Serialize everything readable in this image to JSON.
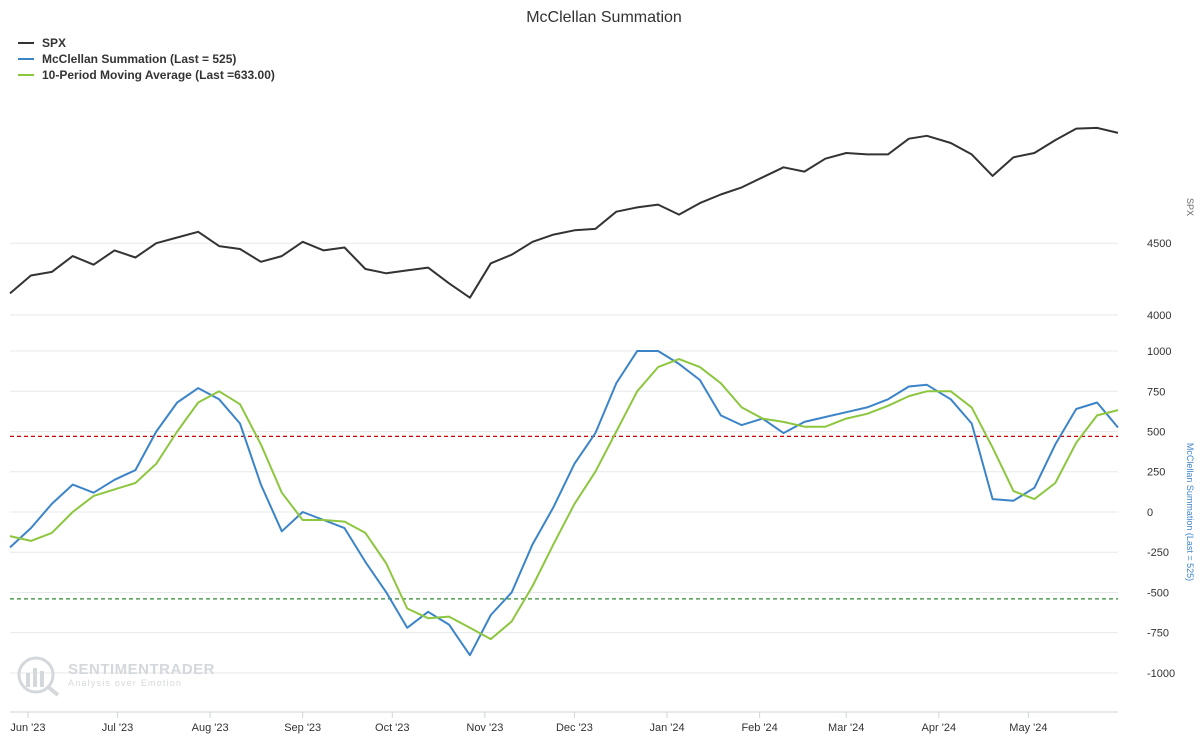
{
  "chart_data": {
    "type": "line",
    "title": "McClellan Summation",
    "x_range": [
      "2023-05-26",
      "2024-05-31"
    ],
    "x_ticks": [
      {
        "date": "2023-06-01",
        "label": "Jun '23"
      },
      {
        "date": "2023-07-01",
        "label": "Jul '23"
      },
      {
        "date": "2023-08-01",
        "label": "Aug '23"
      },
      {
        "date": "2023-09-01",
        "label": "Sep '23"
      },
      {
        "date": "2023-10-01",
        "label": "Oct '23"
      },
      {
        "date": "2023-11-01",
        "label": "Nov '23"
      },
      {
        "date": "2023-12-01",
        "label": "Dec '23"
      },
      {
        "date": "2024-01-01",
        "label": "Jan '24"
      },
      {
        "date": "2024-02-01",
        "label": "Feb '24"
      },
      {
        "date": "2024-03-01",
        "label": "Mar '24"
      },
      {
        "date": "2024-04-01",
        "label": "Apr '24"
      },
      {
        "date": "2024-05-01",
        "label": "May '24"
      }
    ],
    "upper_axis": {
      "title": "SPX",
      "range": [
        3950,
        5500
      ],
      "ticks": [
        4000,
        4500
      ],
      "tick_labels": [
        "4000",
        "4500"
      ]
    },
    "lower_axis": {
      "title": "McClellan Summation (Last = 525)",
      "range": [
        -1100,
        1050
      ],
      "ticks": [
        1000,
        750,
        500,
        250,
        0,
        -250,
        -500,
        -750,
        -1000
      ],
      "tick_labels": [
        "1000",
        "750",
        "500",
        "250",
        "0",
        "-250",
        "-500",
        "-750",
        "-1000"
      ]
    },
    "reference_lines": [
      {
        "value": 470,
        "color": "#cc0000"
      },
      {
        "value": -540,
        "color": "#2e8b2e"
      }
    ],
    "legend": [
      {
        "label": "SPX",
        "color": "#333333"
      },
      {
        "label": "McClellan Summation (Last = 525)",
        "color": "#3c84c8"
      },
      {
        "label": "10-Period Moving Average (Last =633.00)",
        "color": "#8dc63f"
      }
    ],
    "series": [
      {
        "name": "SPX",
        "axis": "upper",
        "color": "#333333",
        "points": [
          [
            "2023-05-26",
            4150
          ],
          [
            "2023-06-02",
            4275
          ],
          [
            "2023-06-09",
            4300
          ],
          [
            "2023-06-16",
            4410
          ],
          [
            "2023-06-23",
            4350
          ],
          [
            "2023-06-30",
            4450
          ],
          [
            "2023-07-07",
            4400
          ],
          [
            "2023-07-14",
            4500
          ],
          [
            "2023-07-21",
            4540
          ],
          [
            "2023-07-28",
            4580
          ],
          [
            "2023-08-04",
            4480
          ],
          [
            "2023-08-11",
            4460
          ],
          [
            "2023-08-18",
            4370
          ],
          [
            "2023-08-25",
            4410
          ],
          [
            "2023-09-01",
            4510
          ],
          [
            "2023-09-08",
            4450
          ],
          [
            "2023-09-15",
            4470
          ],
          [
            "2023-09-22",
            4320
          ],
          [
            "2023-09-29",
            4290
          ],
          [
            "2023-10-06",
            4310
          ],
          [
            "2023-10-13",
            4330
          ],
          [
            "2023-10-20",
            4220
          ],
          [
            "2023-10-27",
            4120
          ],
          [
            "2023-11-03",
            4360
          ],
          [
            "2023-11-10",
            4420
          ],
          [
            "2023-11-17",
            4510
          ],
          [
            "2023-11-24",
            4560
          ],
          [
            "2023-12-01",
            4590
          ],
          [
            "2023-12-08",
            4600
          ],
          [
            "2023-12-15",
            4720
          ],
          [
            "2023-12-22",
            4750
          ],
          [
            "2023-12-29",
            4770
          ],
          [
            "2024-01-05",
            4700
          ],
          [
            "2024-01-12",
            4780
          ],
          [
            "2024-01-19",
            4840
          ],
          [
            "2024-01-26",
            4890
          ],
          [
            "2024-02-02",
            4960
          ],
          [
            "2024-02-09",
            5030
          ],
          [
            "2024-02-16",
            5000
          ],
          [
            "2024-02-23",
            5090
          ],
          [
            "2024-03-01",
            5130
          ],
          [
            "2024-03-08",
            5120
          ],
          [
            "2024-03-15",
            5120
          ],
          [
            "2024-03-22",
            5230
          ],
          [
            "2024-03-28",
            5250
          ],
          [
            "2024-04-05",
            5200
          ],
          [
            "2024-04-12",
            5120
          ],
          [
            "2024-04-19",
            4970
          ],
          [
            "2024-04-26",
            5100
          ],
          [
            "2024-05-03",
            5130
          ],
          [
            "2024-05-10",
            5220
          ],
          [
            "2024-05-17",
            5300
          ],
          [
            "2024-05-24",
            5305
          ],
          [
            "2024-05-31",
            5270
          ]
        ]
      },
      {
        "name": "McClellan Summation (Last = 525)",
        "axis": "lower",
        "color": "#3c84c8",
        "points": [
          [
            "2023-05-26",
            -220
          ],
          [
            "2023-06-02",
            -100
          ],
          [
            "2023-06-09",
            50
          ],
          [
            "2023-06-16",
            170
          ],
          [
            "2023-06-23",
            120
          ],
          [
            "2023-06-30",
            200
          ],
          [
            "2023-07-07",
            260
          ],
          [
            "2023-07-14",
            500
          ],
          [
            "2023-07-21",
            680
          ],
          [
            "2023-07-28",
            770
          ],
          [
            "2023-08-04",
            700
          ],
          [
            "2023-08-11",
            550
          ],
          [
            "2023-08-18",
            170
          ],
          [
            "2023-08-25",
            -120
          ],
          [
            "2023-09-01",
            0
          ],
          [
            "2023-09-08",
            -50
          ],
          [
            "2023-09-15",
            -100
          ],
          [
            "2023-09-22",
            -310
          ],
          [
            "2023-09-29",
            -500
          ],
          [
            "2023-10-06",
            -720
          ],
          [
            "2023-10-13",
            -620
          ],
          [
            "2023-10-20",
            -700
          ],
          [
            "2023-10-27",
            -890
          ],
          [
            "2023-11-03",
            -640
          ],
          [
            "2023-11-10",
            -500
          ],
          [
            "2023-11-17",
            -200
          ],
          [
            "2023-11-24",
            30
          ],
          [
            "2023-12-01",
            300
          ],
          [
            "2023-12-08",
            490
          ],
          [
            "2023-12-15",
            800
          ],
          [
            "2023-12-22",
            1000
          ],
          [
            "2023-12-29",
            1000
          ],
          [
            "2024-01-05",
            920
          ],
          [
            "2024-01-12",
            820
          ],
          [
            "2024-01-19",
            600
          ],
          [
            "2024-01-26",
            540
          ],
          [
            "2024-02-02",
            580
          ],
          [
            "2024-02-09",
            490
          ],
          [
            "2024-02-16",
            560
          ],
          [
            "2024-02-23",
            590
          ],
          [
            "2024-03-01",
            620
          ],
          [
            "2024-03-08",
            650
          ],
          [
            "2024-03-15",
            700
          ],
          [
            "2024-03-22",
            780
          ],
          [
            "2024-03-28",
            790
          ],
          [
            "2024-04-05",
            700
          ],
          [
            "2024-04-12",
            550
          ],
          [
            "2024-04-19",
            80
          ],
          [
            "2024-04-26",
            70
          ],
          [
            "2024-05-03",
            150
          ],
          [
            "2024-05-10",
            420
          ],
          [
            "2024-05-17",
            640
          ],
          [
            "2024-05-24",
            680
          ],
          [
            "2024-05-31",
            525
          ]
        ]
      },
      {
        "name": "10-Period Moving Average (Last =633.00)",
        "axis": "lower",
        "color": "#8dc63f",
        "points": [
          [
            "2023-05-26",
            -150
          ],
          [
            "2023-06-02",
            -180
          ],
          [
            "2023-06-09",
            -130
          ],
          [
            "2023-06-16",
            0
          ],
          [
            "2023-06-23",
            100
          ],
          [
            "2023-06-30",
            140
          ],
          [
            "2023-07-07",
            180
          ],
          [
            "2023-07-14",
            300
          ],
          [
            "2023-07-21",
            500
          ],
          [
            "2023-07-28",
            680
          ],
          [
            "2023-08-04",
            750
          ],
          [
            "2023-08-11",
            670
          ],
          [
            "2023-08-18",
            420
          ],
          [
            "2023-08-25",
            120
          ],
          [
            "2023-09-01",
            -50
          ],
          [
            "2023-09-08",
            -50
          ],
          [
            "2023-09-15",
            -60
          ],
          [
            "2023-09-22",
            -130
          ],
          [
            "2023-09-29",
            -320
          ],
          [
            "2023-10-06",
            -600
          ],
          [
            "2023-10-13",
            -660
          ],
          [
            "2023-10-20",
            -650
          ],
          [
            "2023-10-27",
            -720
          ],
          [
            "2023-11-03",
            -790
          ],
          [
            "2023-11-10",
            -680
          ],
          [
            "2023-11-17",
            -460
          ],
          [
            "2023-11-24",
            -200
          ],
          [
            "2023-12-01",
            50
          ],
          [
            "2023-12-08",
            250
          ],
          [
            "2023-12-15",
            500
          ],
          [
            "2023-12-22",
            750
          ],
          [
            "2023-12-29",
            900
          ],
          [
            "2024-01-05",
            950
          ],
          [
            "2024-01-12",
            900
          ],
          [
            "2024-01-19",
            800
          ],
          [
            "2024-01-26",
            650
          ],
          [
            "2024-02-02",
            580
          ],
          [
            "2024-02-09",
            560
          ],
          [
            "2024-02-16",
            530
          ],
          [
            "2024-02-23",
            530
          ],
          [
            "2024-03-01",
            580
          ],
          [
            "2024-03-08",
            610
          ],
          [
            "2024-03-15",
            660
          ],
          [
            "2024-03-22",
            720
          ],
          [
            "2024-03-28",
            750
          ],
          [
            "2024-04-05",
            750
          ],
          [
            "2024-04-12",
            650
          ],
          [
            "2024-04-19",
            400
          ],
          [
            "2024-04-26",
            130
          ],
          [
            "2024-05-03",
            80
          ],
          [
            "2024-05-10",
            180
          ],
          [
            "2024-05-17",
            430
          ],
          [
            "2024-05-24",
            600
          ],
          [
            "2024-05-31",
            633
          ]
        ]
      }
    ]
  },
  "watermark": {
    "brand": "SENTIMENTRADER",
    "tagline": "Analysis over Emotion"
  }
}
